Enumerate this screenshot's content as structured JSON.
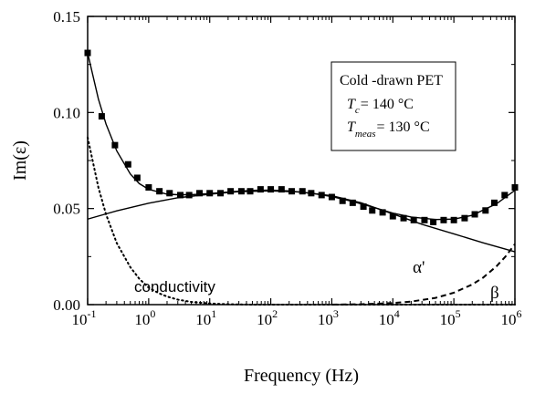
{
  "chart_data": {
    "type": "scatter",
    "title": "",
    "xlabel": "Frequency (Hz)",
    "ylabel": "Im(ε)",
    "x_scale": "log",
    "xlim": [
      0.1,
      1000000
    ],
    "ylim": [
      0.0,
      0.15
    ],
    "x_ticks": [
      {
        "base": "10",
        "exp": "-1"
      },
      {
        "base": "10",
        "exp": "0"
      },
      {
        "base": "10",
        "exp": "1"
      },
      {
        "base": "10",
        "exp": "2"
      },
      {
        "base": "10",
        "exp": "3"
      },
      {
        "base": "10",
        "exp": "4"
      },
      {
        "base": "10",
        "exp": "5"
      },
      {
        "base": "10",
        "exp": "6"
      }
    ],
    "y_ticks": [
      "0.00",
      "0.05",
      "0.10",
      "0.15"
    ],
    "legend_box": {
      "line1": "Cold -drawn PET",
      "line2_sym": "T",
      "line2_sub": "c",
      "line2_val": "= 140 °C",
      "line3_sym": "T",
      "line3_sub": "meas",
      "line3_val": "= 130 °C",
      "placement": "top-right"
    },
    "annotations": {
      "conductivity": "conductivity",
      "alpha": "α'",
      "beta": "β"
    },
    "series": [
      {
        "style": "markers",
        "x": [
          0.1,
          0.17,
          0.28,
          0.46,
          0.65,
          1.0,
          1.5,
          2.2,
          3.3,
          4.6,
          6.8,
          10,
          15,
          22,
          33,
          46,
          68,
          100,
          150,
          220,
          330,
          460,
          680,
          1000,
          1500,
          2200,
          3300,
          4600,
          6800,
          10000,
          15000,
          22000,
          33000,
          46000,
          68000,
          100000,
          150000,
          220000,
          330000,
          460000,
          680000,
          1000000
        ],
        "y": [
          0.131,
          0.098,
          0.083,
          0.073,
          0.066,
          0.061,
          0.059,
          0.058,
          0.057,
          0.057,
          0.058,
          0.058,
          0.058,
          0.059,
          0.059,
          0.059,
          0.06,
          0.06,
          0.06,
          0.059,
          0.059,
          0.058,
          0.057,
          0.056,
          0.054,
          0.053,
          0.051,
          0.049,
          0.048,
          0.046,
          0.045,
          0.044,
          0.044,
          0.043,
          0.044,
          0.044,
          0.045,
          0.047,
          0.049,
          0.053,
          0.057,
          0.061
        ]
      },
      {
        "style": "solid-fit",
        "x": [
          0.1,
          0.15,
          0.2,
          0.3,
          0.5,
          0.7,
          1,
          2,
          3,
          5,
          10,
          20,
          50,
          100,
          200,
          500,
          1000,
          2000,
          5000,
          10000,
          20000,
          50000,
          100000,
          200000,
          500000,
          1000000
        ],
        "y": [
          0.131,
          0.107,
          0.094,
          0.08,
          0.068,
          0.063,
          0.06,
          0.0575,
          0.0572,
          0.0572,
          0.0578,
          0.0586,
          0.0595,
          0.0596,
          0.0592,
          0.0578,
          0.0562,
          0.054,
          0.0505,
          0.0476,
          0.0456,
          0.0443,
          0.0445,
          0.0465,
          0.0525,
          0.0595
        ]
      },
      {
        "name": "α'",
        "style": "solid",
        "x": [
          0.1,
          0.3,
          1,
          3,
          10,
          30,
          100,
          300,
          1000,
          3000,
          10000,
          30000,
          100000,
          300000,
          1000000
        ],
        "y": [
          0.0445,
          0.0488,
          0.0528,
          0.0556,
          0.0575,
          0.0588,
          0.0592,
          0.0586,
          0.0567,
          0.053,
          0.0472,
          0.0418,
          0.0368,
          0.0322,
          0.0275
        ]
      },
      {
        "name": "conductivity",
        "style": "dotted",
        "x": [
          0.1,
          0.15,
          0.2,
          0.3,
          0.5,
          0.7,
          1,
          1.5,
          2,
          3,
          5,
          10,
          20,
          50,
          100,
          1000000
        ],
        "y": [
          0.087,
          0.061,
          0.047,
          0.032,
          0.0195,
          0.0135,
          0.0088,
          0.0058,
          0.0042,
          0.0026,
          0.0014,
          0.0006,
          0.0002,
          0.0,
          0.0,
          0.0
        ]
      },
      {
        "name": "β",
        "style": "dashed",
        "x": [
          1000,
          3000,
          10000,
          20000,
          50000,
          100000,
          200000,
          300000,
          500000,
          700000,
          1000000
        ],
        "y": [
          0.0,
          0.0002,
          0.0008,
          0.0016,
          0.0035,
          0.0062,
          0.0105,
          0.014,
          0.02,
          0.025,
          0.0315
        ]
      }
    ]
  }
}
